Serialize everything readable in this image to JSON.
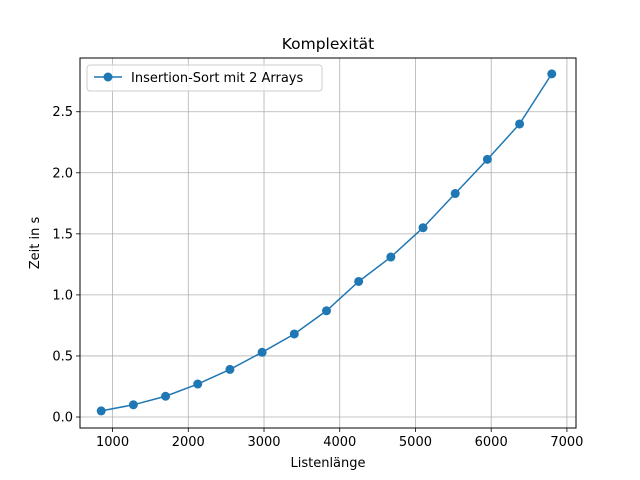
{
  "chart_data": {
    "type": "line",
    "title": "Komplexität",
    "xlabel": "Listenlänge",
    "ylabel": "Zeit in s",
    "xlim": [
      570,
      7120
    ],
    "ylim": [
      -0.09,
      2.94
    ],
    "xticks": [
      1000,
      2000,
      3000,
      4000,
      5000,
      6000,
      7000
    ],
    "xtick_labels": [
      "1000",
      "2000",
      "3000",
      "4000",
      "5000",
      "6000",
      "7000"
    ],
    "yticks": [
      0.0,
      0.5,
      1.0,
      1.5,
      2.0,
      2.5
    ],
    "ytick_labels": [
      "0.0",
      "0.5",
      "1.0",
      "1.5",
      "2.0",
      "2.5"
    ],
    "grid": true,
    "legend_position": "top-left",
    "series": [
      {
        "name": "Insertion-Sort mit 2 Arrays",
        "color": "#1f77b4",
        "marker": "circle",
        "x": [
          850,
          1275,
          1700,
          2125,
          2550,
          2975,
          3400,
          3825,
          4250,
          4675,
          5100,
          5525,
          5950,
          6375,
          6800
        ],
        "y": [
          0.05,
          0.1,
          0.17,
          0.27,
          0.39,
          0.53,
          0.68,
          0.87,
          1.11,
          1.31,
          1.55,
          1.83,
          2.11,
          2.4,
          2.81
        ]
      }
    ]
  }
}
